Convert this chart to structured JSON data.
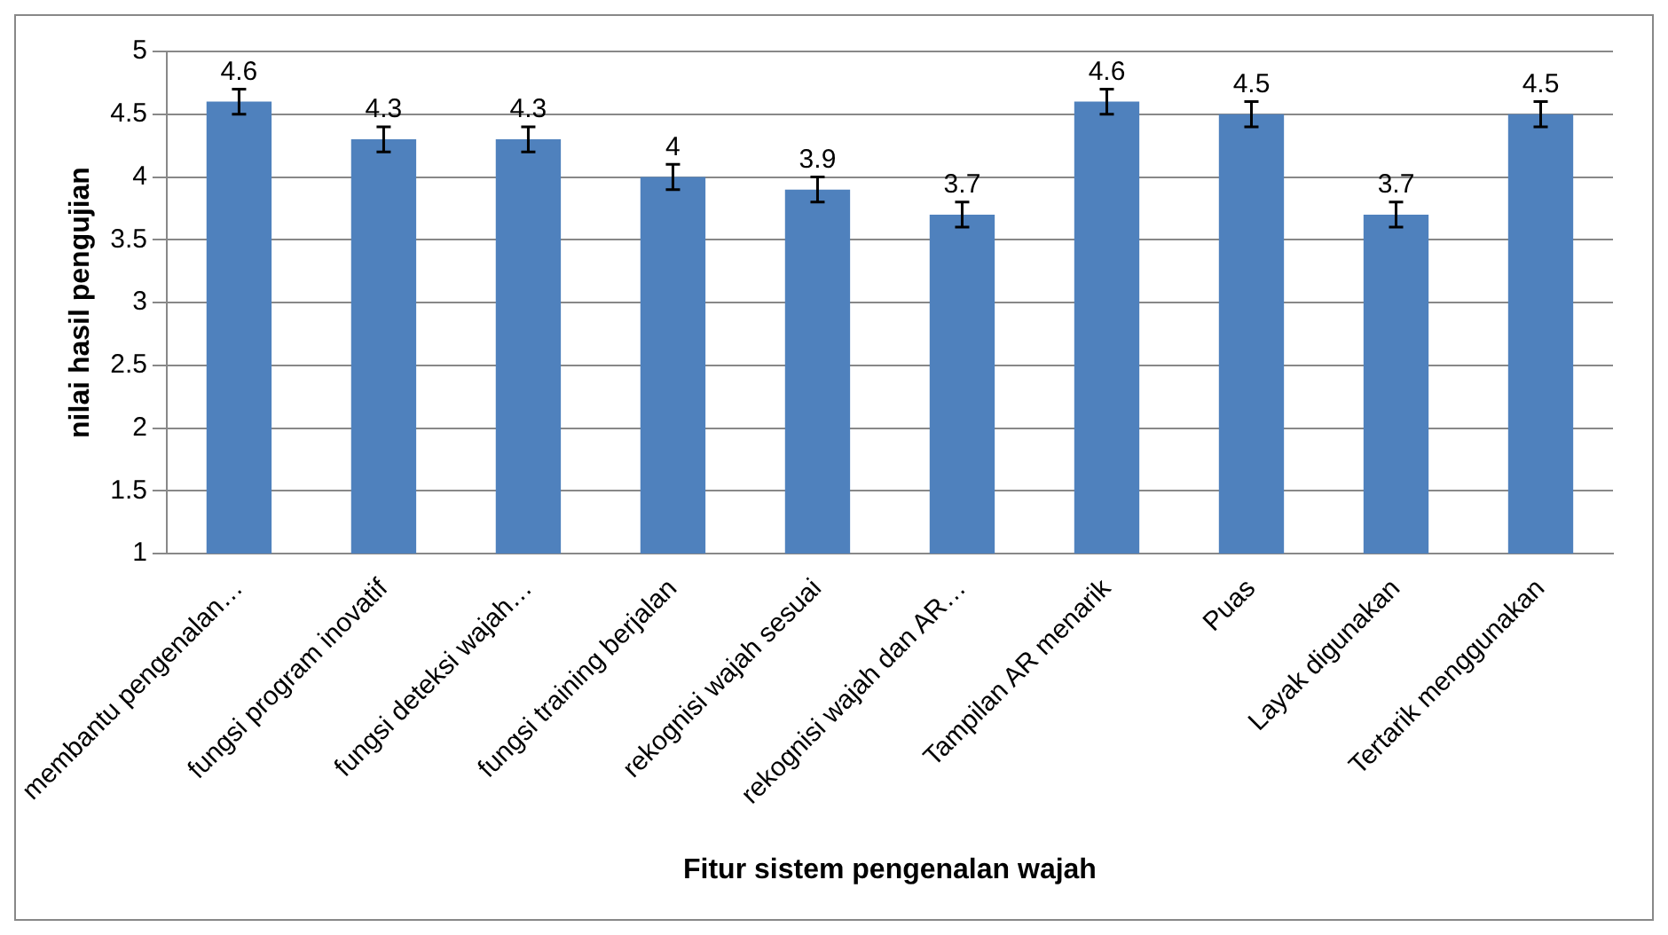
{
  "chart_data": {
    "type": "bar",
    "xlabel": "Fitur sistem pengenalan wajah",
    "ylabel": "nilai hasil pengujian",
    "categories": [
      "membantu pengenalan…",
      "fungsi program inovatif",
      "fungsi deteksi wajah…",
      "fungsi training berjalan",
      "rekognisi wajah sesuai",
      "rekognisi wajah dan AR…",
      "Tampilan AR menarik",
      "Puas",
      "Layak digunakan",
      "Tertarik menggunakan"
    ],
    "values": [
      4.6,
      4.3,
      4.3,
      4,
      3.9,
      3.7,
      4.6,
      4.5,
      3.7,
      4.5
    ],
    "errors": [
      0.1,
      0.1,
      0.1,
      0.1,
      0.1,
      0.1,
      0.1,
      0.1,
      0.1,
      0.1
    ],
    "color": "#4f81bd",
    "ylim": [
      1,
      5
    ],
    "yticks": [
      1,
      1.5,
      2,
      2.5,
      3,
      3.5,
      4,
      4.5,
      5
    ],
    "grid": "y",
    "data_labels": true,
    "legend": false
  }
}
